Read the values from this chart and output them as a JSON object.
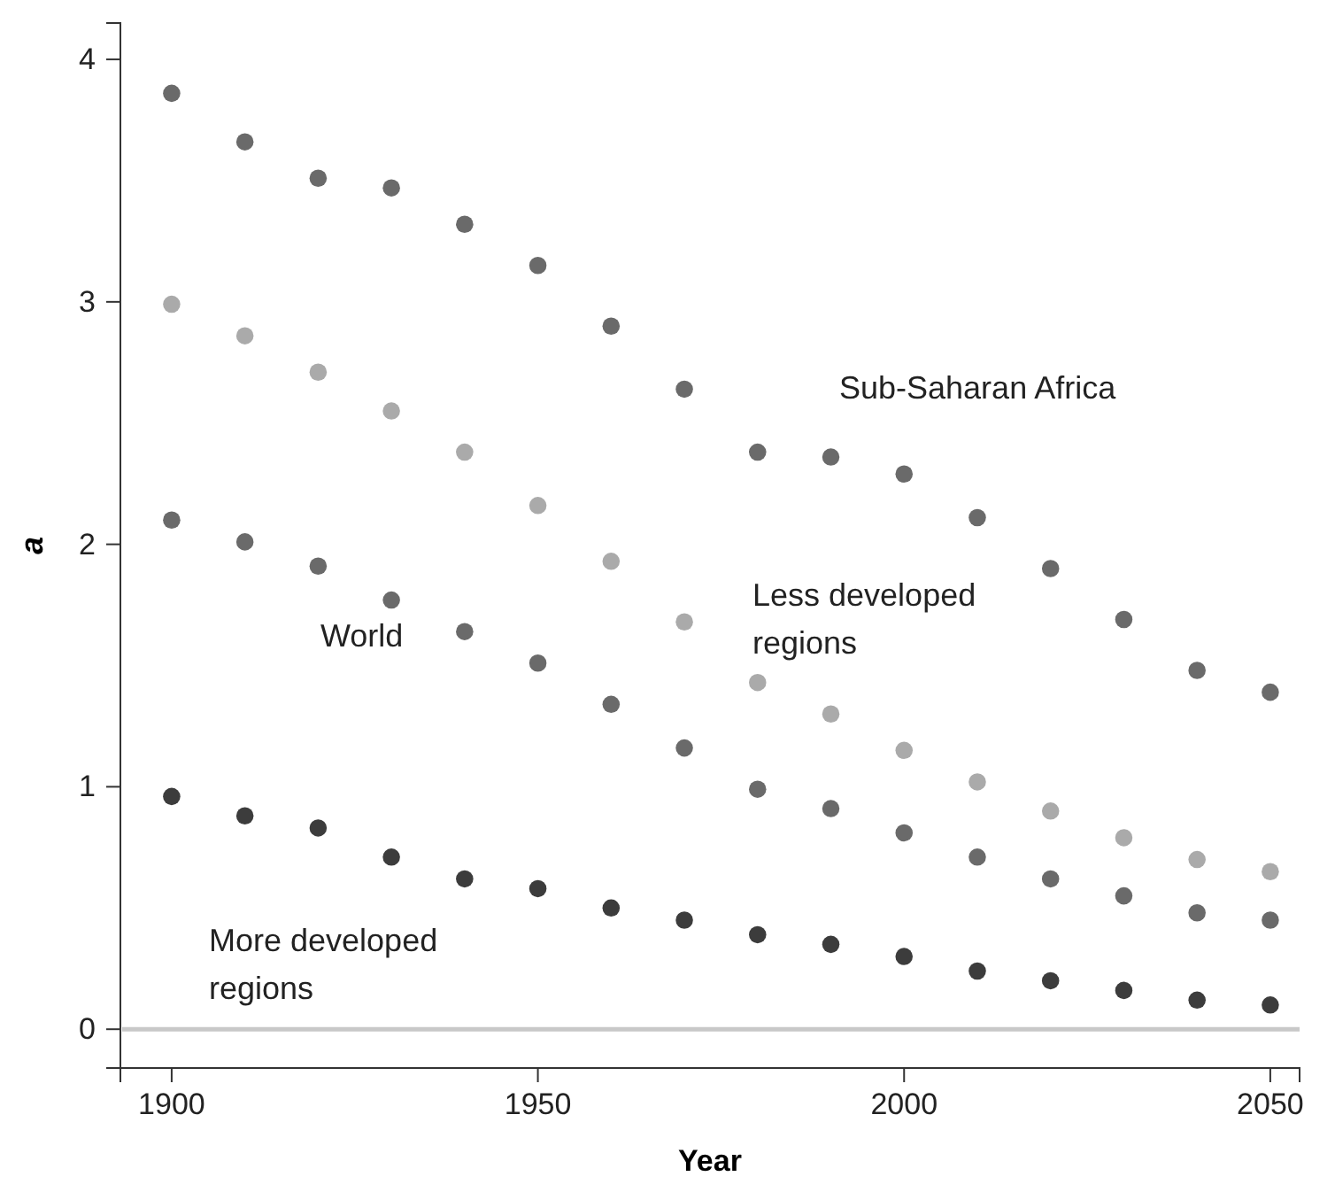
{
  "chart_data": {
    "type": "scatter",
    "xlabel": "Year",
    "ylabel": "a",
    "x": [
      1900,
      1910,
      1920,
      1930,
      1940,
      1950,
      1960,
      1970,
      1980,
      1990,
      2000,
      2010,
      2020,
      2030,
      2040,
      2050
    ],
    "xlim": [
      1893,
      2054
    ],
    "xticks": [
      1900,
      1950,
      2000,
      2050
    ],
    "ylim": [
      -0.16,
      4.15
    ],
    "yticks": [
      0,
      1,
      2,
      3,
      4
    ],
    "marker": "circle",
    "grid": false,
    "ref_lines": [
      {
        "axis": "y",
        "value": 0,
        "color": "#c8c8c8"
      }
    ],
    "series": [
      {
        "name": "Sub-Saharan Africa",
        "color": "#6a6a6a",
        "values": [
          3.86,
          3.66,
          3.51,
          3.47,
          3.32,
          3.15,
          2.9,
          2.64,
          2.38,
          2.36,
          2.29,
          2.11,
          1.9,
          1.69,
          1.48,
          1.39
        ]
      },
      {
        "name": "Less developed regions",
        "color": "#aaaaaa",
        "values": [
          2.99,
          2.86,
          2.71,
          2.55,
          2.38,
          2.16,
          1.93,
          1.68,
          1.43,
          1.3,
          1.15,
          1.02,
          0.9,
          0.79,
          0.7,
          0.65
        ]
      },
      {
        "name": "World",
        "color": "#6a6a6a",
        "values": [
          2.1,
          2.01,
          1.91,
          1.77,
          1.64,
          1.51,
          1.34,
          1.16,
          0.99,
          0.91,
          0.81,
          0.71,
          0.62,
          0.55,
          0.48,
          0.45
        ]
      },
      {
        "name": "More developed regions",
        "color": "#3c3c3c",
        "values": [
          0.96,
          0.88,
          0.83,
          0.71,
          0.62,
          0.58,
          0.5,
          0.45,
          0.39,
          0.35,
          0.3,
          0.24,
          0.2,
          0.16,
          0.12,
          0.1
        ]
      }
    ]
  }
}
